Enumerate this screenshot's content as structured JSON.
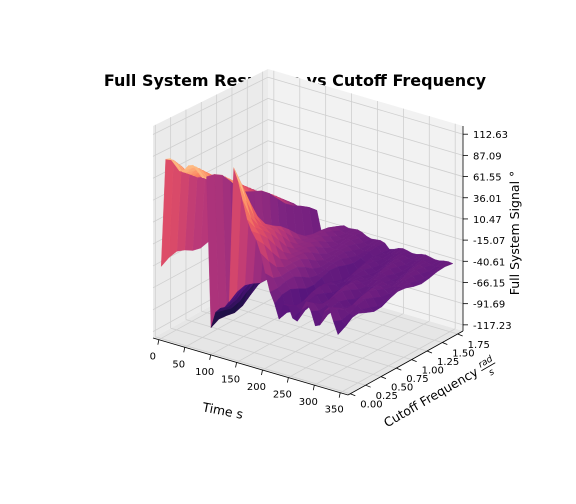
{
  "chart_data": {
    "type": "surface",
    "title": "Full System Response vs Cutoff Frequency",
    "xlabel": "Time s",
    "ylabel_text": "Cutoff Frequency",
    "ylabel_unit_num": "rad",
    "ylabel_unit_den": "s",
    "zlabel": "Full System Signal °",
    "x_ticks": [
      "0",
      "50",
      "100",
      "150",
      "200",
      "250",
      "300",
      "350"
    ],
    "y_ticks": [
      "0.00",
      "0.25",
      "0.50",
      "0.75",
      "1.00",
      "1.25",
      "1.50",
      "1.75"
    ],
    "z_ticks": [
      "-117.23",
      "-91.69",
      "-66.15",
      "-40.61",
      "-15.07",
      "10.47",
      "36.01",
      "61.55",
      "87.09",
      "112.63"
    ],
    "xlim": [
      0,
      350
    ],
    "ylim": [
      0,
      1.8
    ],
    "zlim": [
      -117.23,
      112.63
    ],
    "colormap": "magma",
    "grid": true,
    "pane_color": "#f2f2f2",
    "grid_color": "#cfcfcf"
  }
}
